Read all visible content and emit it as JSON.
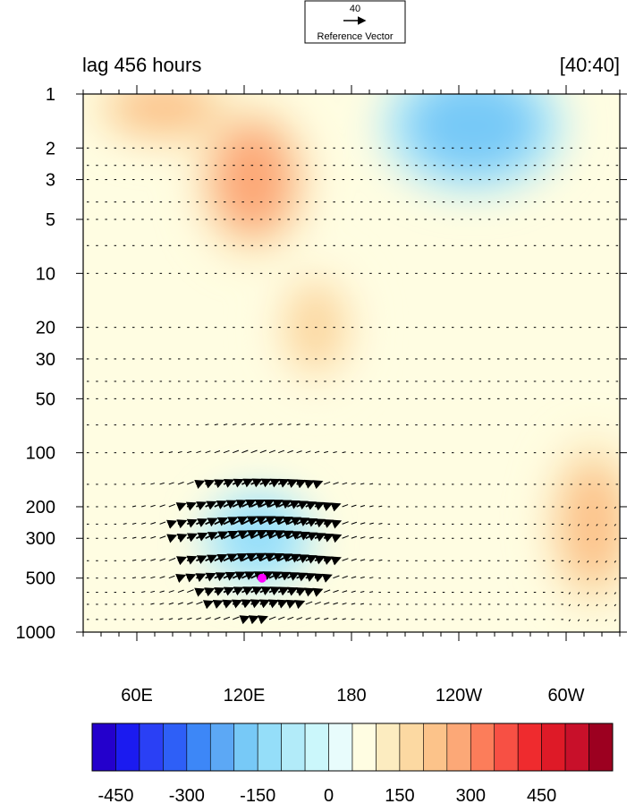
{
  "chart_data": {
    "type": "heatmap",
    "title_left": "lag 456 hours",
    "title_right": "[40:40]",
    "reference_vector": {
      "magnitude_label": "40",
      "label": "Reference Vector"
    },
    "x_ticks": [
      "60E",
      "120E",
      "180",
      "120W",
      "60W"
    ],
    "x_tick_lon": [
      60,
      120,
      180,
      240,
      300
    ],
    "x_range_lon": [
      30,
      330
    ],
    "y_ticks": [
      "1",
      "2",
      "3",
      "5",
      "10",
      "20",
      "30",
      "50",
      "100",
      "200",
      "300",
      "500",
      "1000"
    ],
    "y_tick_values": [
      1,
      2,
      3,
      5,
      10,
      20,
      30,
      50,
      100,
      200,
      300,
      500,
      1000
    ],
    "y_range": [
      1,
      1000
    ],
    "y_scale": "log-reversed",
    "colorbar": {
      "labels": [
        "-450",
        "-300",
        "-150",
        "0",
        "150",
        "300",
        "450"
      ],
      "label_values": [
        -450,
        -300,
        -150,
        0,
        150,
        300,
        450
      ],
      "colors": [
        "#2400cc",
        "#1b1bf0",
        "#2a40f5",
        "#2e5ff7",
        "#3d87f7",
        "#5ca8f5",
        "#77c9f7",
        "#95def9",
        "#b2ebf9",
        "#cbf7fb",
        "#e8fcfc",
        "#fffde2",
        "#fcecc0",
        "#fcd9a2",
        "#fcc38a",
        "#fca877",
        "#fc7d5a",
        "#f75044",
        "#ef2b2e",
        "#de1a27",
        "#c8102a",
        "#9c0020"
      ]
    },
    "shaded_features": [
      {
        "lon": 125,
        "p": 3,
        "value": 260
      },
      {
        "lon": 75,
        "p": 1.2,
        "value": 240
      },
      {
        "lon": 248,
        "p": 1.5,
        "value": -160
      },
      {
        "lon": 128,
        "p": 300,
        "value": -110
      },
      {
        "lon": 315,
        "p": 250,
        "value": 200
      },
      {
        "lon": 160,
        "p": 20,
        "value": 160
      }
    ],
    "marker": {
      "lon": 130,
      "p": 500,
      "color": "#ff00ff"
    }
  }
}
